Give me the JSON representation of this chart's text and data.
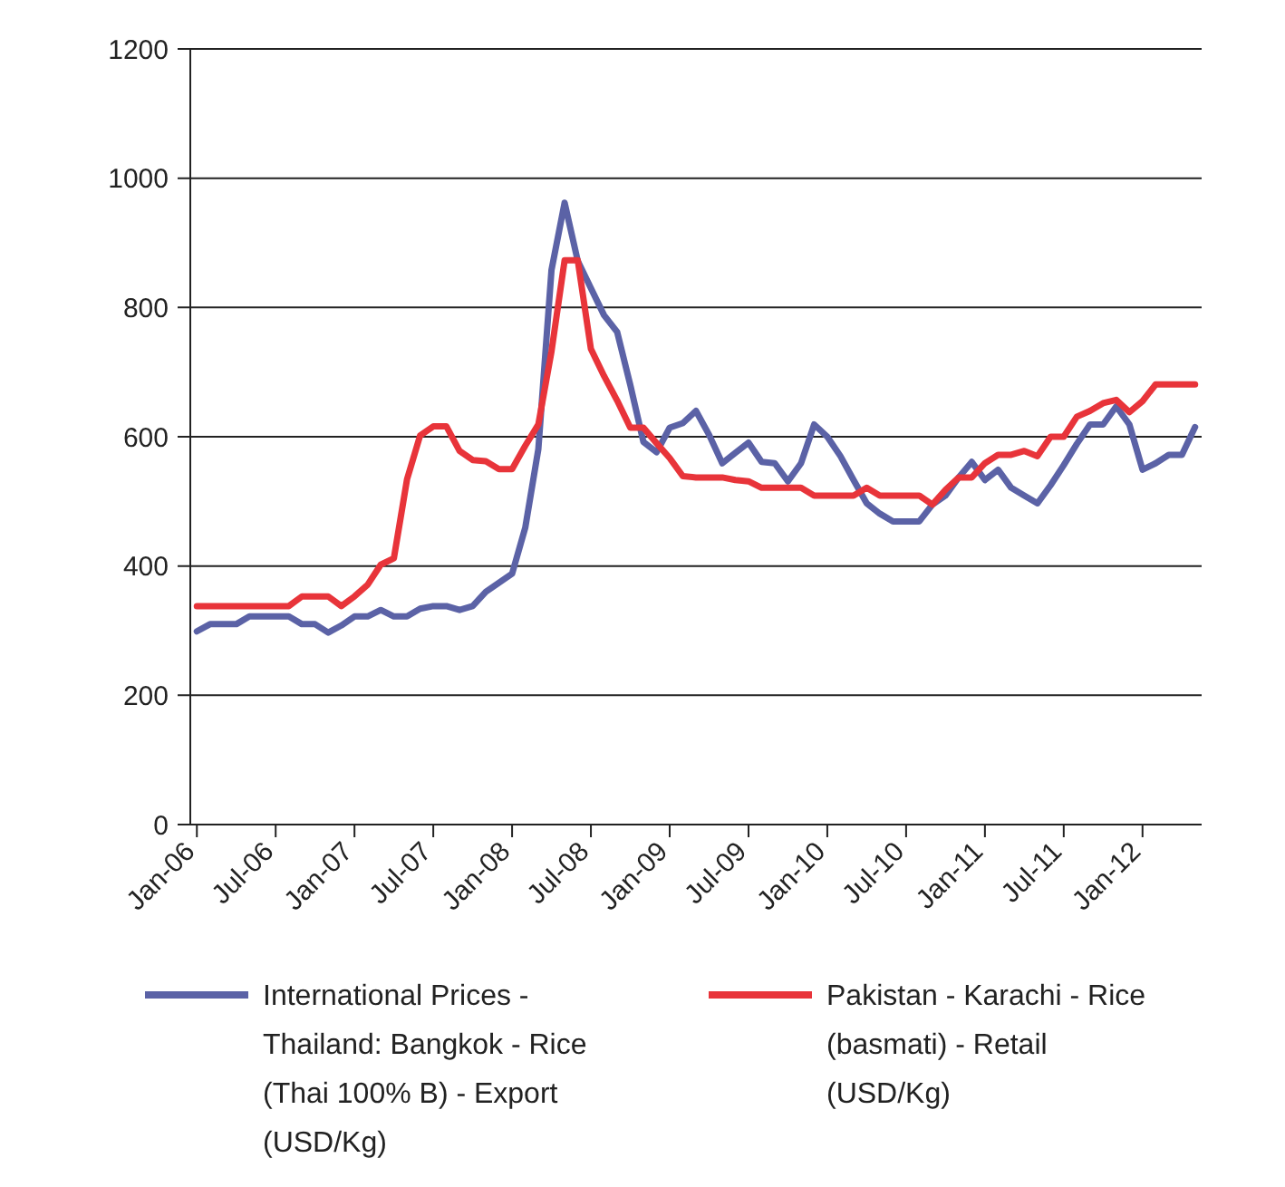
{
  "chart_data": {
    "type": "line",
    "categories": [
      "Jan-06",
      null,
      null,
      null,
      null,
      null,
      "Jul-06",
      null,
      null,
      null,
      null,
      null,
      "Jan-07",
      null,
      null,
      null,
      null,
      null,
      "Jul-07",
      null,
      null,
      null,
      null,
      null,
      "Jan-08",
      null,
      null,
      null,
      null,
      null,
      "Jul-08",
      null,
      null,
      null,
      null,
      null,
      "Jan-09",
      null,
      null,
      null,
      null,
      null,
      "Jul-09",
      null,
      null,
      null,
      null,
      null,
      "Jan-10",
      null,
      null,
      null,
      null,
      null,
      "Jul-10",
      null,
      null,
      null,
      null,
      null,
      "Jan-11",
      null,
      null,
      null,
      null,
      null,
      "Jul-11",
      null,
      null,
      null,
      null,
      null,
      "Jan-12",
      null,
      null,
      null,
      null
    ],
    "series": [
      {
        "name": "International Prices - Thailand: Bangkok - Rice (Thai 100% B) - Export (USD/Kg)",
        "color": "#5b62a6",
        "values": [
          299,
          310,
          310,
          310,
          322,
          322,
          322,
          322,
          310,
          310,
          297,
          308,
          322,
          322,
          332,
          322,
          322,
          334,
          338,
          338,
          332,
          338,
          360,
          374,
          388,
          459,
          581,
          858,
          962,
          872,
          830,
          788,
          762,
          680,
          592,
          576,
          614,
          621,
          640,
          603,
          559,
          575,
          591,
          561,
          559,
          531,
          559,
          619,
          600,
          570,
          533,
          497,
          481,
          469,
          469,
          469,
          495,
          509,
          537,
          561,
          533,
          549,
          521,
          509,
          497,
          525,
          556,
          589,
          619,
          619,
          647,
          619,
          549,
          559,
          572,
          572,
          615
        ]
      },
      {
        "name": "Pakistan - Karachi - Rice (basmati) - Retail (USD/Kg)",
        "color": "#e8343a",
        "values": [
          338,
          338,
          338,
          338,
          338,
          338,
          338,
          338,
          353,
          353,
          353,
          338,
          353,
          371,
          402,
          412,
          534,
          602,
          616,
          616,
          578,
          564,
          562,
          550,
          550,
          586,
          619,
          732,
          873,
          873,
          736,
          694,
          656,
          614,
          614,
          590,
          567,
          539,
          537,
          537,
          537,
          533,
          531,
          521,
          521,
          521,
          521,
          509,
          509,
          509,
          509,
          521,
          509,
          509,
          509,
          509,
          495,
          518,
          537,
          537,
          559,
          572,
          572,
          578,
          570,
          600,
          600,
          631,
          640,
          652,
          657,
          638,
          655,
          681,
          681,
          681,
          681
        ]
      }
    ],
    "ylim": [
      0,
      1200
    ],
    "yticks": [
      0,
      200,
      400,
      600,
      800,
      1000,
      1200
    ],
    "grid": "y",
    "legend": "bottom",
    "line_style": "solid",
    "marker": "none"
  }
}
